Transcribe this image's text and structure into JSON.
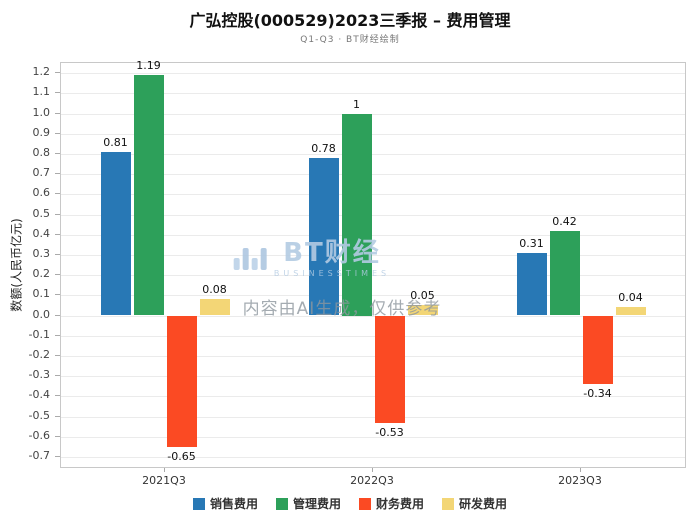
{
  "page": {
    "title": "广弘控股(000529)2023三季报 – 费用管理",
    "subtitle": "Q1-Q3 · BT财经绘制"
  },
  "watermark": {
    "brand": "BT财经",
    "brand_sub": "BUSINESSTIMES",
    "ai_note": "内容由AI生成，仅供参考"
  },
  "chart_data": {
    "type": "bar",
    "title": "广弘控股(000529)2023三季报 – 费用管理",
    "subtitle": "Q1-Q3 · BT财经绘制",
    "xlabel": "",
    "ylabel": "数额(人民币亿元)",
    "categories": [
      "2021Q3",
      "2022Q3",
      "2023Q3"
    ],
    "series": [
      {
        "name": "销售费用",
        "color": "#2878b5",
        "values": [
          0.81,
          0.78,
          0.31
        ]
      },
      {
        "name": "管理费用",
        "color": "#2da05a",
        "values": [
          1.19,
          1,
          0.42
        ]
      },
      {
        "name": "财务费用",
        "color": "#fb4a23",
        "values": [
          -0.65,
          -0.53,
          -0.34
        ]
      },
      {
        "name": "研发费用",
        "color": "#f3d676",
        "values": [
          0.08,
          0.05,
          0.04
        ]
      }
    ],
    "ylim": [
      -0.75,
      1.25
    ],
    "yticks": [
      -0.7,
      -0.6,
      -0.5,
      -0.4,
      -0.3,
      -0.2,
      -0.1,
      0.0,
      0.1,
      0.2,
      0.3,
      0.4,
      0.5,
      0.6,
      0.7,
      0.8,
      0.9,
      1.0,
      1.1,
      1.2
    ],
    "grid": true,
    "legend_position": "bottom"
  }
}
